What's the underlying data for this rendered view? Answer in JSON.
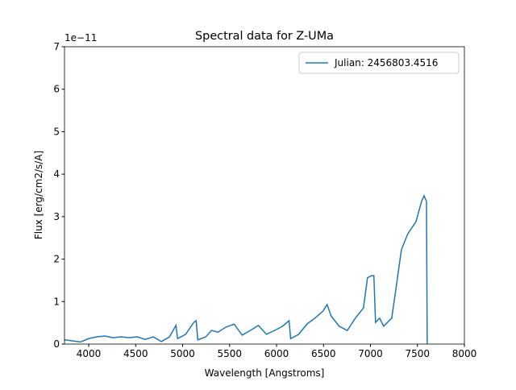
{
  "chart_data": {
    "type": "line",
    "title": "Spectral data for Z-UMa",
    "x_label": "Wavelength [Angstroms]",
    "y_label": "Flux [erg/cm2/s/A]",
    "offset_label": "1e−11",
    "x": [
      3742,
      3914,
      4000,
      4086,
      4172,
      4258,
      4344,
      4430,
      4516,
      4602,
      4688,
      4774,
      4860,
      4929,
      4946,
      5032,
      5118,
      5144,
      5161,
      5247,
      5307,
      5376,
      5462,
      5548,
      5634,
      5720,
      5806,
      5892,
      5978,
      6064,
      6133,
      6150,
      6236,
      6323,
      6409,
      6495,
      6538,
      6581,
      6667,
      6753,
      6839,
      6925,
      6968,
      7011,
      7036,
      7054,
      7097,
      7140,
      7226,
      7269,
      7329,
      7398,
      7484,
      7544,
      7570,
      7596,
      7604
    ],
    "series": [
      {
        "name": "Julian: 2456803.4516",
        "color": "#1f77b4",
        "values": [
          0.1,
          0.05,
          0.13,
          0.17,
          0.19,
          0.15,
          0.17,
          0.15,
          0.17,
          0.11,
          0.17,
          0.06,
          0.17,
          0.44,
          0.13,
          0.23,
          0.51,
          0.55,
          0.1,
          0.17,
          0.32,
          0.28,
          0.4,
          0.47,
          0.21,
          0.32,
          0.44,
          0.23,
          0.32,
          0.42,
          0.55,
          0.13,
          0.23,
          0.47,
          0.61,
          0.78,
          0.93,
          0.66,
          0.42,
          0.32,
          0.61,
          0.85,
          1.56,
          1.61,
          1.61,
          0.51,
          0.61,
          0.42,
          0.61,
          1.27,
          2.22,
          2.6,
          2.88,
          3.36,
          3.49,
          3.36,
          0.0
        ]
      }
    ],
    "xlim": [
      3742,
      8000
    ],
    "xticks": [
      4000,
      4500,
      5000,
      5500,
      6000,
      6500,
      7000,
      7500,
      8000
    ],
    "ylim": [
      0,
      7
    ],
    "yticks": [
      0,
      1,
      2,
      3,
      4,
      5,
      6,
      7
    ],
    "legend": "upper right"
  }
}
